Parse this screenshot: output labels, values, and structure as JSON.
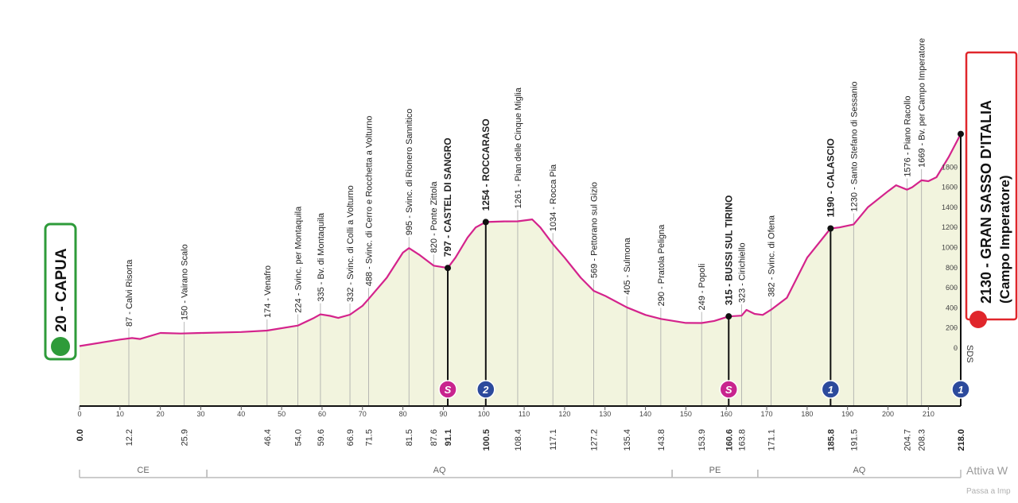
{
  "chart_data": {
    "type": "area",
    "start": {
      "label": "20 - CAPUA",
      "km": 0,
      "elevation": 20,
      "km_label": "0.0",
      "color": "#2e9b3a"
    },
    "finish": {
      "label": "2130 - GRAN SASSO D'ITALIA",
      "sublabel": "(Campo Imperatore)",
      "km": 218,
      "elevation": 2130,
      "km_label": "218.0",
      "color": "#e0262b"
    },
    "profile": {
      "color": "#d4238c",
      "fill": "#f2f4de",
      "x": [
        0,
        10,
        13,
        15,
        20,
        25,
        30,
        40,
        46.4,
        54,
        58,
        59.6,
        62,
        64,
        66.9,
        70,
        71.5,
        76,
        80,
        81.5,
        84,
        87.6,
        91.1,
        93,
        96,
        98,
        100.5,
        105,
        108.4,
        112,
        114,
        117.1,
        120,
        124,
        127.2,
        130,
        135.4,
        140,
        143.8,
        147,
        150,
        153.9,
        157,
        160.6,
        163.8,
        165,
        167,
        169,
        171.1,
        175,
        180,
        185.8,
        188,
        191.5,
        195,
        200,
        202,
        204.7,
        206,
        208.3,
        210,
        212,
        215,
        218
      ],
      "elevation": [
        20,
        85,
        100,
        90,
        150,
        145,
        150,
        160,
        174,
        224,
        300,
        335,
        320,
        300,
        332,
        420,
        488,
        700,
        950,
        995,
        930,
        820,
        797,
        900,
        1100,
        1200,
        1254,
        1260,
        1261,
        1280,
        1200,
        1034,
        900,
        700,
        569,
        520,
        405,
        330,
        290,
        270,
        250,
        249,
        270,
        315,
        323,
        380,
        340,
        330,
        382,
        500,
        900,
        1190,
        1200,
        1230,
        1400,
        1560,
        1620,
        1576,
        1600,
        1669,
        1660,
        1700,
        1900,
        2130
      ]
    },
    "waypoints": [
      {
        "label": "87 - Calvi Risorta",
        "km": 12.2,
        "km_label": "12.2",
        "elevation": 87,
        "major": false
      },
      {
        "label": "150 - Vairano Scalo",
        "km": 25.9,
        "km_label": "25.9",
        "elevation": 150,
        "major": false
      },
      {
        "label": "174 - Venafro",
        "km": 46.4,
        "km_label": "46.4",
        "elevation": 174,
        "major": false
      },
      {
        "label": "224 - Svinc. per Montaquila",
        "km": 54.0,
        "km_label": "54.0",
        "elevation": 224,
        "major": false
      },
      {
        "label": "335 - Bv. di Montaquila",
        "km": 59.6,
        "km_label": "59.6",
        "elevation": 335,
        "major": false
      },
      {
        "label": "332 - Svinc. di Colli a Volturno",
        "km": 66.9,
        "km_label": "66.9",
        "elevation": 332,
        "major": false
      },
      {
        "label": "488 - Svinc. di Cerro e Rocchetta a Volturno",
        "km": 71.5,
        "km_label": "71.5",
        "elevation": 488,
        "major": false
      },
      {
        "label": "995 - Svinc. di Rionero Sannitico",
        "km": 81.5,
        "km_label": "81.5",
        "elevation": 995,
        "major": false
      },
      {
        "label": "820 - Ponte Zittola",
        "km": 87.6,
        "km_label": "87.6",
        "elevation": 820,
        "major": false
      },
      {
        "label": "797 - CASTEL DI SANGRO",
        "km": 91.1,
        "km_label": "91.1",
        "elevation": 797,
        "major": true
      },
      {
        "label": "1254 - ROCCARASO",
        "km": 100.5,
        "km_label": "100.5",
        "elevation": 1254,
        "major": true
      },
      {
        "label": "1261 - Pian delle Cinque Miglia",
        "km": 108.4,
        "km_label": "108.4",
        "elevation": 1261,
        "major": false
      },
      {
        "label": "1034 - Rocca Pia",
        "km": 117.1,
        "km_label": "117.1",
        "elevation": 1034,
        "major": false
      },
      {
        "label": "569 - Pettorano sul Gizio",
        "km": 127.2,
        "km_label": "127.2",
        "elevation": 569,
        "major": false
      },
      {
        "label": "405 - Sulmona",
        "km": 135.4,
        "km_label": "135.4",
        "elevation": 405,
        "major": false
      },
      {
        "label": "290 - Pratola Peligna",
        "km": 143.8,
        "km_label": "143.8",
        "elevation": 290,
        "major": false
      },
      {
        "label": "249 - Popoli",
        "km": 153.9,
        "km_label": "153.9",
        "elevation": 249,
        "major": false
      },
      {
        "label": "315 - BUSSI SUL TIRINO",
        "km": 160.6,
        "km_label": "160.6",
        "elevation": 315,
        "major": true
      },
      {
        "label": "323 - Cirichiello",
        "km": 163.8,
        "km_label": "163.8",
        "elevation": 323,
        "major": false
      },
      {
        "label": "382 - Svinc. di Ofena",
        "km": 171.1,
        "km_label": "171.1",
        "elevation": 382,
        "major": false
      },
      {
        "label": "1190 - CALASCIO",
        "km": 185.8,
        "km_label": "185.8",
        "elevation": 1190,
        "major": true
      },
      {
        "label": "1230 - Santo Stefano di Sessanio",
        "km": 191.5,
        "km_label": "191.5",
        "elevation": 1230,
        "major": false
      },
      {
        "label": "1576 - Piano Racollo",
        "km": 204.7,
        "km_label": "204.7",
        "elevation": 1576,
        "major": false
      },
      {
        "label": "1669 - Bv. per Campo Imperatore",
        "km": 208.3,
        "km_label": "208.3",
        "elevation": 1669,
        "major": false
      }
    ],
    "markers": [
      {
        "km": 91.1,
        "label": "S",
        "kind": "sprint"
      },
      {
        "km": 100.5,
        "label": "2",
        "kind": "kom"
      },
      {
        "km": 160.6,
        "label": "S",
        "kind": "sprint"
      },
      {
        "km": 185.8,
        "label": "1",
        "kind": "kom"
      },
      {
        "km": 218,
        "label": "1",
        "kind": "kom"
      }
    ],
    "marker_colors": {
      "sprint": "#c8248e",
      "kom": "#2c4a9c"
    },
    "regions": [
      {
        "name": "CE",
        "start": 0,
        "end": 31.5
      },
      {
        "name": "AQ",
        "start": 31.5,
        "end": 146.6
      },
      {
        "name": "PE",
        "start": 146.6,
        "end": 167.8
      },
      {
        "name": "AQ",
        "start": 167.8,
        "end": 218
      }
    ],
    "side_note": "SDS",
    "xlim": [
      0,
      218
    ],
    "xticks": [
      0,
      10,
      20,
      30,
      40,
      50,
      60,
      70,
      80,
      90,
      100,
      110,
      120,
      130,
      140,
      150,
      160,
      170,
      180,
      190,
      200,
      210
    ],
    "ylim": [
      -577,
      2130
    ],
    "yticks": [
      0,
      200,
      400,
      600,
      800,
      1000,
      1200,
      1400,
      1600,
      1800
    ]
  },
  "watermark": {
    "line1": "Attiva W",
    "line2": "Passa a Imp"
  }
}
